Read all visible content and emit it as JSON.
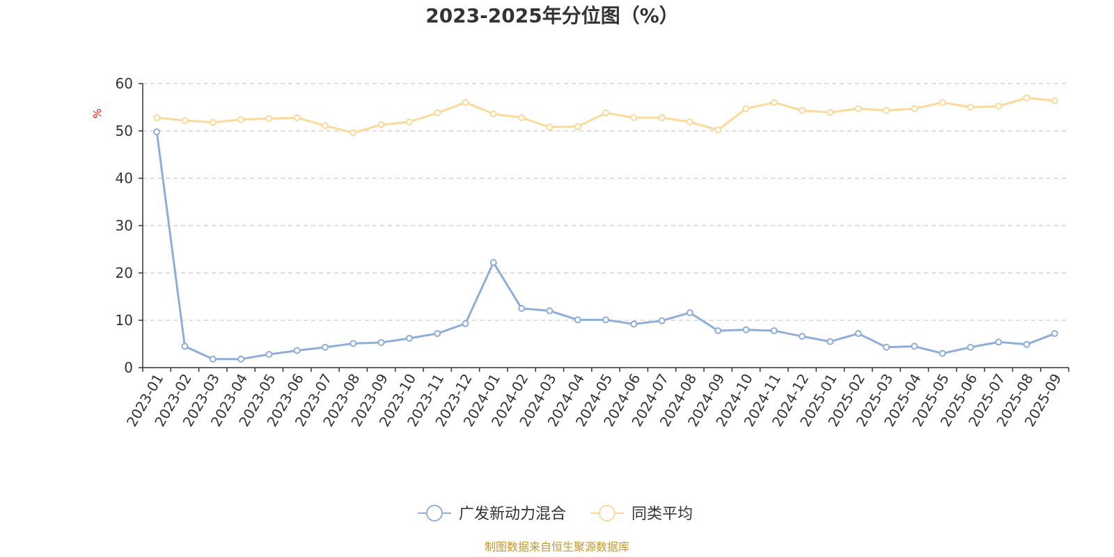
{
  "chart_data": {
    "type": "line",
    "title": "2023-2025年分位图（%）",
    "y_unit": "%",
    "ylim": [
      0,
      60
    ],
    "y_ticks": [
      "0",
      "10",
      "20",
      "30",
      "40",
      "50",
      "60"
    ],
    "grid": true,
    "legend_position": "bottom",
    "categories": [
      "2023-01",
      "2023-02",
      "2023-03",
      "2023-04",
      "2023-05",
      "2023-06",
      "2023-07",
      "2023-08",
      "2023-09",
      "2023-10",
      "2023-11",
      "2023-12",
      "2024-01",
      "2024-02",
      "2024-03",
      "2024-04",
      "2024-05",
      "2024-06",
      "2024-07",
      "2024-08",
      "2024-09",
      "2024-10",
      "2024-11",
      "2024-12",
      "2025-01",
      "2025-02",
      "2025-03",
      "2025-04",
      "2025-05",
      "2025-06",
      "2025-07",
      "2025-08",
      "2025-09"
    ],
    "series": [
      {
        "name": "广发新动力混合",
        "color": "#8eaed9",
        "values": [
          49.8,
          4.5,
          1.8,
          1.8,
          2.8,
          3.6,
          4.3,
          5.1,
          5.3,
          6.2,
          7.2,
          9.3,
          22.2,
          12.5,
          12.0,
          10.1,
          10.1,
          9.2,
          9.9,
          11.6,
          7.8,
          8.0,
          7.8,
          6.6,
          5.5,
          7.2,
          4.3,
          4.5,
          3.0,
          4.3,
          5.4,
          4.9,
          7.2
        ]
      },
      {
        "name": "同类平均",
        "color": "#fcd999",
        "values": [
          52.8,
          52.2,
          51.8,
          52.4,
          52.6,
          52.8,
          51.1,
          49.6,
          51.3,
          51.9,
          53.8,
          56.0,
          53.6,
          52.8,
          50.8,
          50.9,
          53.8,
          52.8,
          52.8,
          51.9,
          50.2,
          54.7,
          56.0,
          54.3,
          53.9,
          54.7,
          54.3,
          54.7,
          56.0,
          55.0,
          55.2,
          57.0,
          56.4
        ]
      }
    ],
    "source_note": "制图数据来自恒生聚源数据库",
    "source_color": "#c9972b",
    "unit_color": "#ff0000",
    "axis_color": "#333333",
    "grid_color": "#cccccc"
  }
}
